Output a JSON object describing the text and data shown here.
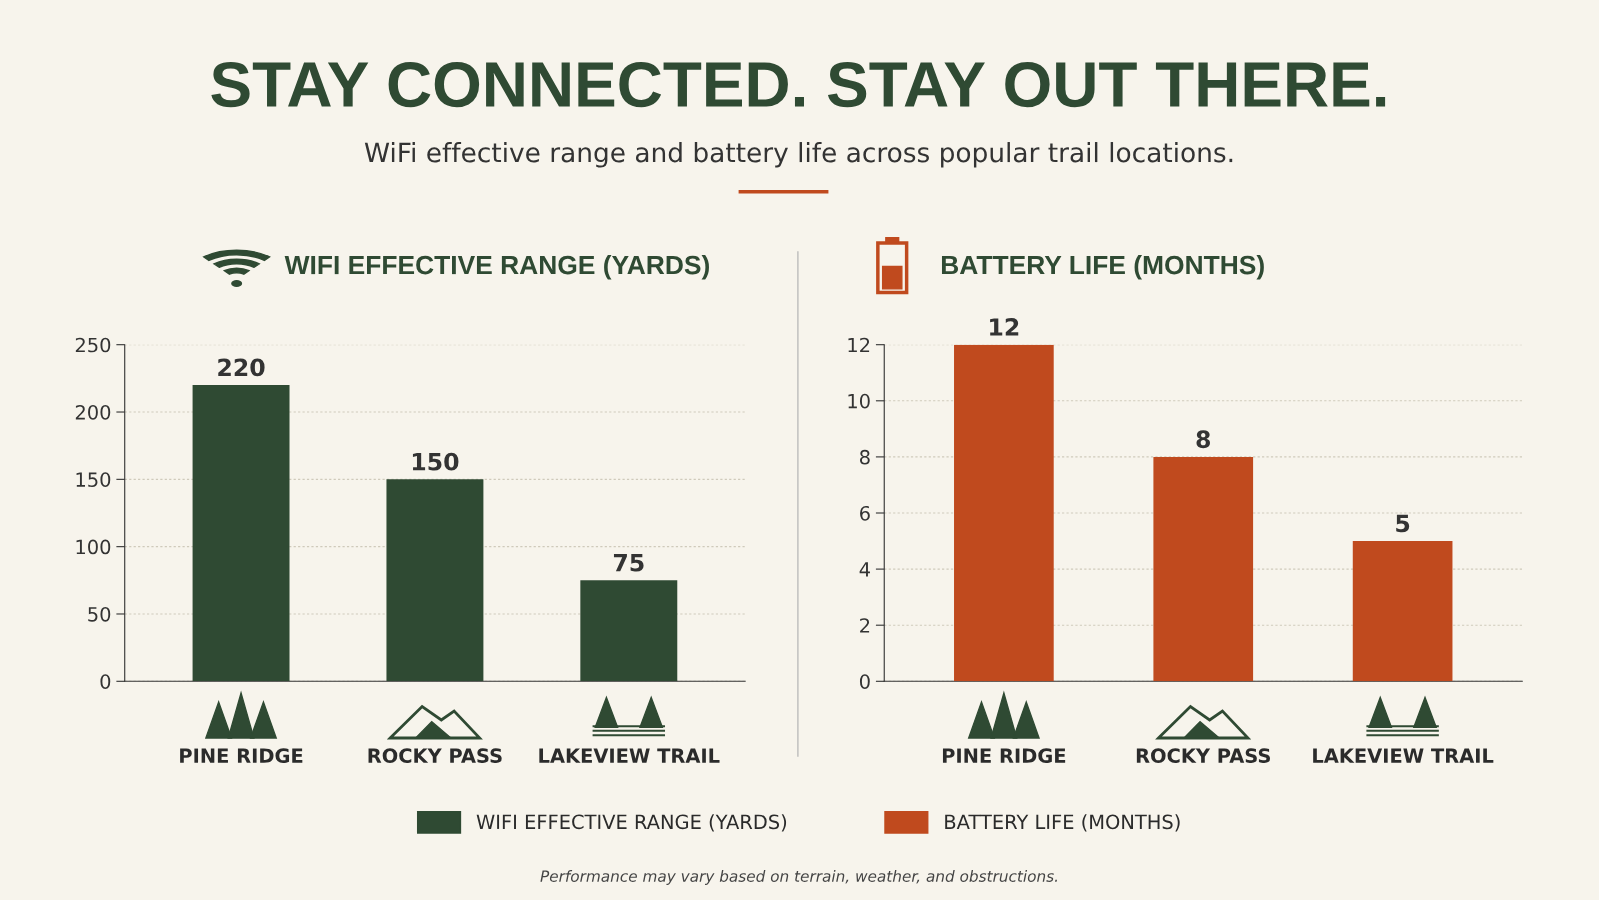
{
  "chart_data": [
    {
      "type": "other",
      "title": "STAY CONNECTED. STAY OUT THERE.",
      "subtitle": "WiFi effective range and battery life across popular trail locations.",
      "annotations": [
        "Performance may vary based on terrain, weather, and obstructions."
      ]
    },
    {
      "type": "bar",
      "title": "WIFI EFFECTIVE RANGE (YARDS)",
      "categories": [
        "PINE RIDGE",
        "ROCKY PASS",
        "LAKEVIEW TRAIL"
      ],
      "series": [
        {
          "name": "WIFI EFFECTIVE RANGE (YARDS)",
          "color": "#2f4a33",
          "values": [
            220,
            150,
            75
          ]
        }
      ],
      "ylim": [
        0,
        250
      ],
      "yticks": [
        0,
        50,
        100,
        150,
        200,
        250
      ],
      "grid": "y",
      "data_labels": true,
      "legend": "bottom"
    },
    {
      "type": "bar",
      "title": "BATTERY LIFE (MONTHS)",
      "categories": [
        "PINE RIDGE",
        "ROCKY PASS",
        "LAKEVIEW TRAIL"
      ],
      "series": [
        {
          "name": "BATTERY LIFE (MONTHS)",
          "color": "#c04a1e",
          "values": [
            12,
            8,
            5
          ]
        }
      ],
      "ylim": [
        0,
        12
      ],
      "yticks": [
        0,
        2,
        4,
        6,
        8,
        10,
        12
      ],
      "grid": "y",
      "data_labels": true,
      "legend": "bottom"
    }
  ]
}
